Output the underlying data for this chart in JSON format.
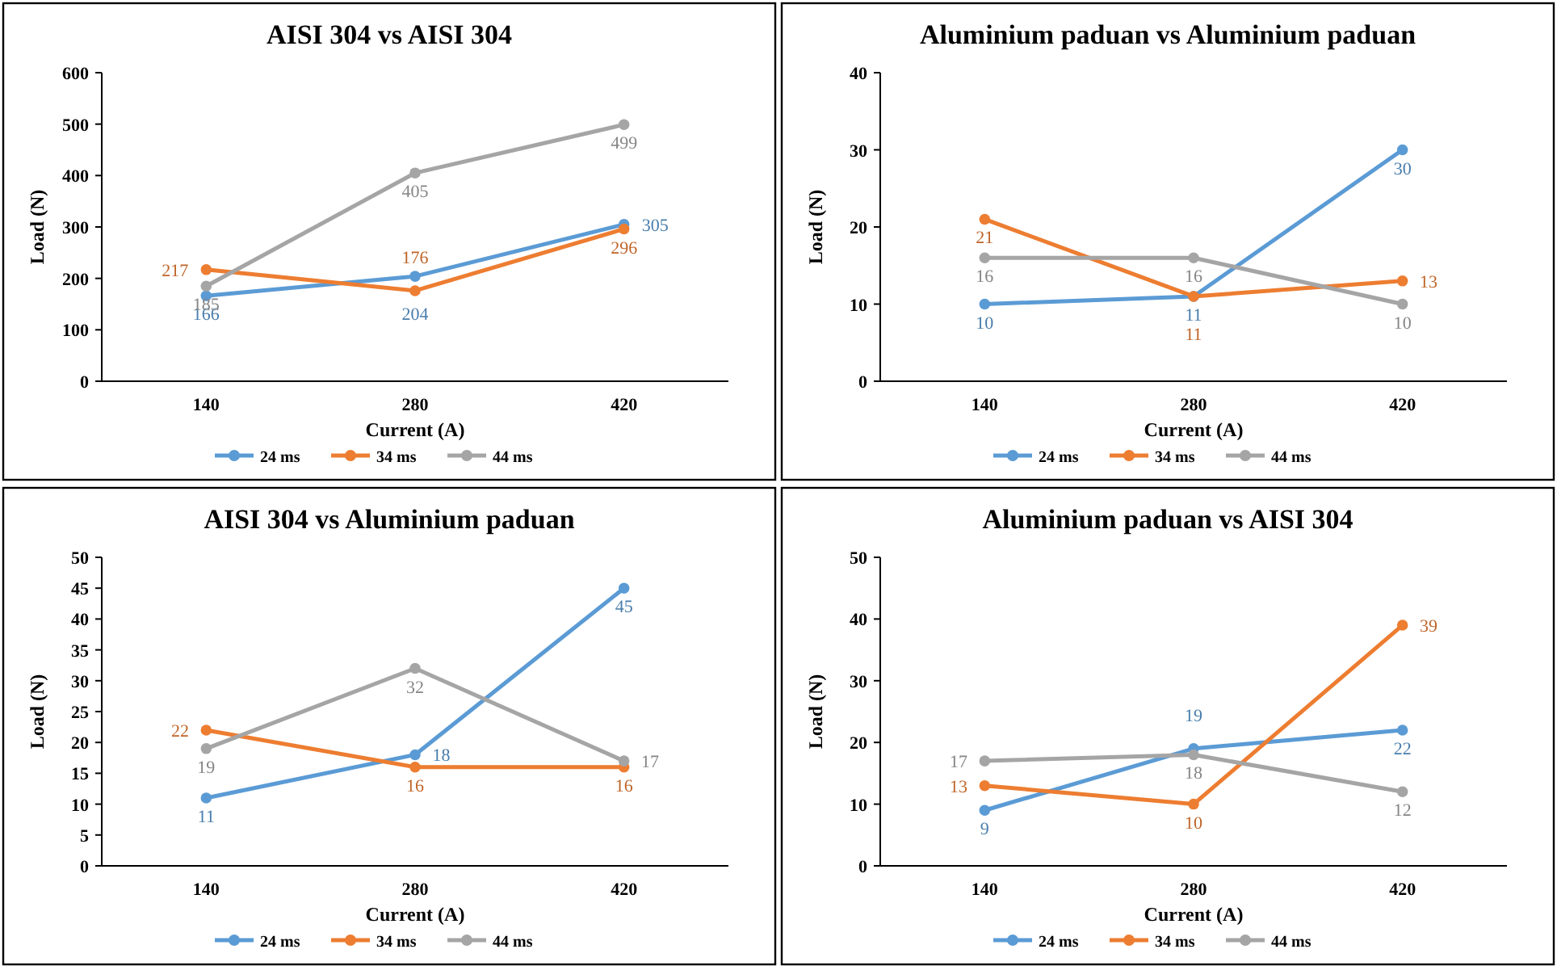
{
  "chart_data": [
    {
      "type": "line",
      "title": "AISI 304 vs AISI 304",
      "xlabel": "Current (A)",
      "ylabel": "Load (N)",
      "categories": [
        "140",
        "280",
        "420"
      ],
      "ylim": [
        0,
        600
      ],
      "yticks": [
        0,
        100,
        200,
        300,
        400,
        500,
        600
      ],
      "marker": "circle",
      "legend": "bottom",
      "data_labels": true,
      "grid": false,
      "series": [
        {
          "name": "24 ms",
          "color": "#5b9bd5",
          "values": [
            166,
            204,
            305
          ]
        },
        {
          "name": "34 ms",
          "color": "#ed7d31",
          "values": [
            217,
            176,
            296
          ]
        },
        {
          "name": "44 ms",
          "color": "#a5a5a5",
          "values": [
            185,
            405,
            499
          ]
        }
      ]
    },
    {
      "type": "line",
      "title": "Aluminium paduan vs Aluminium paduan",
      "xlabel": "Current (A)",
      "ylabel": "Load (N)",
      "categories": [
        "140",
        "280",
        "420"
      ],
      "ylim": [
        0,
        40
      ],
      "yticks": [
        0,
        10,
        20,
        30,
        40
      ],
      "marker": "circle",
      "legend": "bottom",
      "data_labels": true,
      "grid": false,
      "series": [
        {
          "name": "24 ms",
          "color": "#5b9bd5",
          "values": [
            10,
            11,
            30
          ]
        },
        {
          "name": "34 ms",
          "color": "#ed7d31",
          "values": [
            21,
            11,
            13
          ]
        },
        {
          "name": "44 ms",
          "color": "#a5a5a5",
          "values": [
            16,
            16,
            10
          ]
        }
      ]
    },
    {
      "type": "line",
      "title": "AISI 304 vs Aluminium paduan",
      "xlabel": "Current (A)",
      "ylabel": "Load (N)",
      "categories": [
        "140",
        "280",
        "420"
      ],
      "ylim": [
        0,
        50
      ],
      "yticks": [
        0,
        5,
        10,
        15,
        20,
        25,
        30,
        35,
        40,
        45,
        50
      ],
      "marker": "circle",
      "legend": "bottom",
      "data_labels": true,
      "grid": false,
      "series": [
        {
          "name": "24 ms",
          "color": "#5b9bd5",
          "values": [
            11,
            18,
            45
          ]
        },
        {
          "name": "34 ms",
          "color": "#ed7d31",
          "values": [
            22,
            16,
            16
          ]
        },
        {
          "name": "44 ms",
          "color": "#a5a5a5",
          "values": [
            19,
            32,
            17
          ]
        }
      ]
    },
    {
      "type": "line",
      "title": "Aluminium paduan vs AISI 304",
      "xlabel": "Current (A)",
      "ylabel": "Load (N)",
      "categories": [
        "140",
        "280",
        "420"
      ],
      "ylim": [
        0,
        50
      ],
      "yticks": [
        0,
        10,
        20,
        30,
        40,
        50
      ],
      "marker": "circle",
      "legend": "bottom",
      "data_labels": true,
      "grid": false,
      "series": [
        {
          "name": "24 ms",
          "color": "#5b9bd5",
          "values": [
            9,
            19,
            22
          ]
        },
        {
          "name": "34 ms",
          "color": "#ed7d31",
          "values": [
            13,
            10,
            39
          ]
        },
        {
          "name": "44 ms",
          "color": "#a5a5a5",
          "values": [
            17,
            18,
            12
          ]
        }
      ]
    }
  ]
}
